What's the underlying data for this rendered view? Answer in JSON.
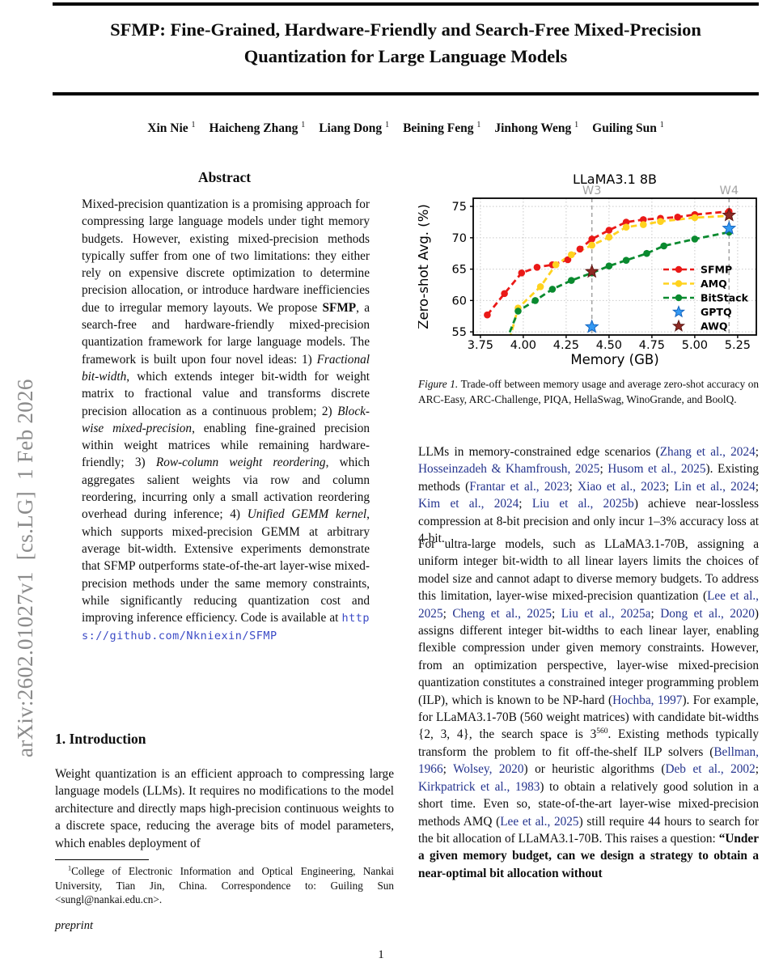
{
  "arxiv_banner": "arXiv:2602.01027v1  [cs.LG]  1 Feb 2026",
  "header": {
    "title_line1": "SFMP: Fine-Grained, Hardware-Friendly and Search-Free Mixed-Precision",
    "title_line2": "Quantization for Large Language Models",
    "authors": [
      {
        "name": "Xin Nie",
        "sup": "1"
      },
      {
        "name": "Haicheng Zhang",
        "sup": "1"
      },
      {
        "name": "Liang Dong",
        "sup": "1"
      },
      {
        "name": "Beining Feng",
        "sup": "1"
      },
      {
        "name": "Jinhong Weng",
        "sup": "1"
      },
      {
        "name": "Guiling Sun",
        "sup": "1"
      }
    ]
  },
  "left_column": {
    "abstract_heading": "Abstract",
    "abstract_rich": [
      {
        "t": "Mixed-precision quantization is a promising approach for compressing large language models under tight memory budgets. However, existing mixed-precision methods typically suffer from one of two limitations: they either rely on expensive discrete optimization to determine precision allocation, or introduce hardware inefficiencies due to irregular memory layouts. We propose "
      },
      {
        "t": "SFMP",
        "s": "b"
      },
      {
        "t": ", a search-free and hardware-friendly mixed-precision quantization framework for large language models. The framework is built upon four novel ideas: 1) "
      },
      {
        "t": "Fractional bit-width",
        "s": "i"
      },
      {
        "t": ", which extends integer bit-width for weight matrix to fractional value and transforms discrete precision allocation as a continuous problem; 2) "
      },
      {
        "t": "Block-wise mixed-precision",
        "s": "i"
      },
      {
        "t": ", enabling fine-grained precision within weight matrices while remaining hardware-friendly; 3) "
      },
      {
        "t": "Row-column weight reordering",
        "s": "i"
      },
      {
        "t": ", which aggregates salient weights via row and column reordering, incurring only a small activation reordering overhead during inference; 4) "
      },
      {
        "t": "Unified GEMM kernel",
        "s": "i"
      },
      {
        "t": ", which supports mixed-precision GEMM at arbitrary average bit-width. Extensive experiments demonstrate that SFMP outperforms state-of-the-art layer-wise mixed-precision methods under the same memory constraints, while significantly reducing quantization cost and improving inference efficiency. Code is available at "
      },
      {
        "t": "https://github.com/Nkniexin/SFMP",
        "s": "mono"
      }
    ],
    "intro_heading": "1. Introduction",
    "intro_text": "Weight quantization is an efficient approach to compressing large language models (LLMs). It requires no modifications to the model architecture and directly maps high-precision continuous weights to a discrete space, reducing the average bits of model parameters, which enables deployment of",
    "footnote_rich": [
      {
        "t": "1",
        "s": "sup"
      },
      {
        "t": "College of Electronic Information and Optical Engineering, Nankai University, Tian Jin, China. Correspondence to: Guiling Sun <sungl@nankai.edu.cn>."
      }
    ],
    "preprint_label": "preprint"
  },
  "right_column": {
    "figure_caption_rich": [
      {
        "t": "Figure 1.",
        "s": "i"
      },
      {
        "t": "  Trade-off between memory usage and average zero-shot accuracy on ARC-Easy, ARC-Challenge, PIQA, HellaSwag, WinoGrande, and BoolQ."
      }
    ],
    "para1_rich": [
      {
        "t": "LLMs in memory-constrained edge scenarios ("
      },
      {
        "t": "Zhang et al., 2024",
        "s": "link"
      },
      {
        "t": "; "
      },
      {
        "t": "Hosseinzadeh & Khamfroush, 2025",
        "s": "link"
      },
      {
        "t": "; "
      },
      {
        "t": "Husom et al., 2025",
        "s": "link"
      },
      {
        "t": "). Existing methods ("
      },
      {
        "t": "Frantar et al., 2023",
        "s": "link"
      },
      {
        "t": "; "
      },
      {
        "t": "Xiao et al., 2023",
        "s": "link"
      },
      {
        "t": "; "
      },
      {
        "t": "Lin et al., 2024",
        "s": "link"
      },
      {
        "t": "; "
      },
      {
        "t": "Kim et al., 2024",
        "s": "link"
      },
      {
        "t": "; "
      },
      {
        "t": "Liu et al., 2025b",
        "s": "link"
      },
      {
        "t": ") achieve near-lossless compression at 8-bit precision and only incur 1–3% accuracy loss at 4-bit."
      }
    ],
    "para2_rich": [
      {
        "t": "For ultra-large models, such as LLaMA3.1-70B, assigning a uniform integer bit-width to all linear layers limits the choices of model size and cannot adapt to diverse memory budgets. To address this limitation, layer-wise mixed-precision quantization ("
      },
      {
        "t": "Lee et al., 2025",
        "s": "link"
      },
      {
        "t": "; "
      },
      {
        "t": "Cheng et al., 2025",
        "s": "link"
      },
      {
        "t": "; "
      },
      {
        "t": "Liu et al., 2025a",
        "s": "link"
      },
      {
        "t": "; "
      },
      {
        "t": "Dong et al., 2020",
        "s": "link"
      },
      {
        "t": ") assigns different integer bit-widths to each linear layer, enabling flexible compression under given memory constraints. However, from an optimization perspective, layer-wise mixed-precision quantization constitutes a constrained integer programming problem (ILP), which is known to be NP-hard ("
      },
      {
        "t": "Hochba, 1997",
        "s": "link"
      },
      {
        "t": "). For example, for LLaMA3.1-70B (560 weight matrices) with candidate bit-widths {2, 3, 4}, the search space is 3"
      },
      {
        "t": "560",
        "s": "sup"
      },
      {
        "t": ". Existing methods typically transform the problem to fit off-the-shelf ILP solvers ("
      },
      {
        "t": "Bellman, 1966",
        "s": "link"
      },
      {
        "t": "; "
      },
      {
        "t": "Wolsey, 2020",
        "s": "link"
      },
      {
        "t": ") or heuristic algorithms ("
      },
      {
        "t": "Deb et al., 2002",
        "s": "link"
      },
      {
        "t": "; "
      },
      {
        "t": "Kirkpatrick et al., 1983",
        "s": "link"
      },
      {
        "t": ") to obtain a relatively good solution in a short time. Even so, state-of-the-art layer-wise mixed-precision methods AMQ ("
      },
      {
        "t": "Lee et al., 2025",
        "s": "link"
      },
      {
        "t": ") still require 44 hours to search for the bit allocation of LLaMA3.1-70B. This raises a question: "
      },
      {
        "t": "“Under a given memory budget, can we design a strategy to obtain a near-optimal bit allocation without",
        "s": "b"
      }
    ]
  },
  "footer": {
    "page_number": "1"
  },
  "chart_data": {
    "type": "line",
    "title": "LLaMA3.1 8B",
    "xlabel": "Memory (GB)",
    "ylabel": "Zero-shot Avg. (%)",
    "xlim": [
      3.708,
      5.359
    ],
    "ylim": [
      54.5,
      76.3
    ],
    "grid": true,
    "legend_position": "lower right",
    "xticks": [
      {
        "v": 3.75,
        "label": "3.75"
      },
      {
        "v": 4.0,
        "label": "4.00"
      },
      {
        "v": 4.25,
        "label": "4.25"
      },
      {
        "v": 4.5,
        "label": "4.50"
      },
      {
        "v": 4.75,
        "label": "4.75"
      },
      {
        "v": 5.0,
        "label": "5.00"
      },
      {
        "v": 5.25,
        "label": "5.25"
      }
    ],
    "yticks": [
      {
        "v": 55,
        "label": "55"
      },
      {
        "v": 60,
        "label": "60"
      },
      {
        "v": 65,
        "label": "65"
      },
      {
        "v": 70,
        "label": "70"
      },
      {
        "v": 75,
        "label": "75"
      }
    ],
    "vlines": [
      {
        "x": 4.4,
        "label": "W3"
      },
      {
        "x": 5.2,
        "label": "W4"
      }
    ],
    "series": [
      {
        "name": "SFMP",
        "color": "#ea1917",
        "marker": "circle",
        "dashed": true,
        "points": [
          [
            3.79,
            57.7
          ],
          [
            3.89,
            61.1
          ],
          [
            3.99,
            64.4
          ],
          [
            4.08,
            65.3
          ],
          [
            4.17,
            65.7
          ],
          [
            4.26,
            66.5
          ],
          [
            4.33,
            68.2
          ],
          [
            4.4,
            69.8
          ],
          [
            4.5,
            71.2
          ],
          [
            4.6,
            72.5
          ],
          [
            4.7,
            72.9
          ],
          [
            4.8,
            73.1
          ],
          [
            4.9,
            73.3
          ],
          [
            5.0,
            73.7
          ],
          [
            5.2,
            74.2
          ]
        ]
      },
      {
        "name": "AMQ",
        "color": "#ffd21f",
        "marker": "circle",
        "dashed": true,
        "line_start": [
          3.92,
          53.8
        ],
        "points": [
          [
            3.97,
            58.8
          ],
          [
            4.1,
            62.2
          ],
          [
            4.19,
            65.7
          ],
          [
            4.28,
            67.3
          ],
          [
            4.4,
            68.8
          ],
          [
            4.5,
            70.1
          ],
          [
            4.6,
            71.7
          ],
          [
            4.7,
            72.1
          ],
          [
            4.8,
            72.6
          ],
          [
            5.0,
            73.2
          ],
          [
            5.2,
            73.5
          ]
        ]
      },
      {
        "name": "BitStack",
        "color": "#0a8a2f",
        "marker": "circle",
        "dashed": true,
        "line_start": [
          3.9,
          53.5
        ],
        "points": [
          [
            3.97,
            58.3
          ],
          [
            4.07,
            60.0
          ],
          [
            4.17,
            61.8
          ],
          [
            4.28,
            63.2
          ],
          [
            4.4,
            64.4
          ],
          [
            4.5,
            65.5
          ],
          [
            4.6,
            66.4
          ],
          [
            4.72,
            67.5
          ],
          [
            4.82,
            68.7
          ],
          [
            5.0,
            69.8
          ],
          [
            5.2,
            70.9
          ]
        ]
      }
    ],
    "scatter": [
      {
        "name": "GPTQ",
        "color": "#3399f3",
        "edge": "#1565c0",
        "marker": "star",
        "points": [
          [
            4.4,
            55.8
          ],
          [
            5.2,
            71.5
          ]
        ]
      },
      {
        "name": "AWQ",
        "color": "#8f2a24",
        "edge": "#5e1a16",
        "marker": "star",
        "points": [
          [
            4.4,
            64.6
          ],
          [
            5.2,
            73.6
          ]
        ]
      }
    ],
    "colors": {
      "grid": "#c9c9c9",
      "vline": "#a3a3a3",
      "vline_label": "#a3a3a3",
      "spine": "#000000"
    }
  }
}
